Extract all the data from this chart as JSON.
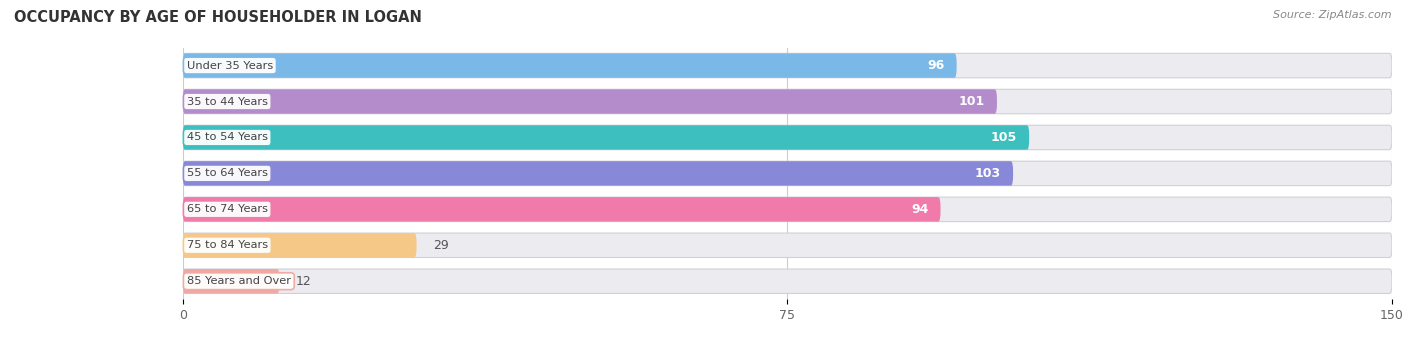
{
  "title": "OCCUPANCY BY AGE OF HOUSEHOLDER IN LOGAN",
  "source": "Source: ZipAtlas.com",
  "categories": [
    "Under 35 Years",
    "35 to 44 Years",
    "45 to 54 Years",
    "55 to 64 Years",
    "65 to 74 Years",
    "75 to 84 Years",
    "85 Years and Over"
  ],
  "values": [
    96,
    101,
    105,
    103,
    94,
    29,
    12
  ],
  "bar_colors": [
    "#7ab8e8",
    "#b48ccc",
    "#3dbfbf",
    "#8888d8",
    "#f07aaa",
    "#f5c888",
    "#f0a8a0"
  ],
  "bg_colors": [
    "#ebebf0",
    "#ebebf0",
    "#ebebf0",
    "#ebebf0",
    "#ebebf0",
    "#ebebf0",
    "#ebebf0"
  ],
  "xlim_data": [
    0,
    150
  ],
  "xticks": [
    0,
    75,
    150
  ],
  "background_color": "#ffffff",
  "gap_color": "#ffffff",
  "label_threshold": 40
}
